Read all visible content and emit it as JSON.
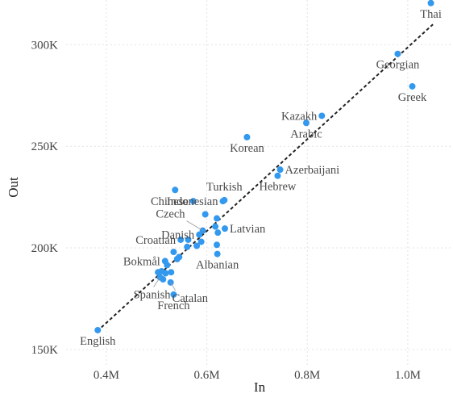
{
  "chart_data": {
    "type": "scatter",
    "title": "",
    "xlabel": "In",
    "ylabel": "Out",
    "xlim": [
      320000,
      1090000
    ],
    "ylim": [
      142000,
      322000
    ],
    "xticks": [
      {
        "value": 400000,
        "label": "0.4M"
      },
      {
        "value": 600000,
        "label": "0.6M"
      },
      {
        "value": 800000,
        "label": "0.8M"
      },
      {
        "value": 1000000,
        "label": "1.0M"
      }
    ],
    "yticks": [
      {
        "value": 150000,
        "label": "150K"
      },
      {
        "value": 200000,
        "label": "200K"
      },
      {
        "value": 250000,
        "label": "250K"
      },
      {
        "value": 300000,
        "label": "300K"
      }
    ],
    "grid": true,
    "point_color": "#3399ee",
    "trend_color": "#222222",
    "trendline": {
      "x": [
        382000,
        1050000
      ],
      "y": [
        159000,
        310000
      ]
    },
    "points": [
      {
        "x": 383000,
        "y": 159500,
        "label": "English",
        "label_pos": "below"
      },
      {
        "x": 1046000,
        "y": 320500,
        "label": "Thai",
        "label_pos": "below"
      },
      {
        "x": 980000,
        "y": 295500,
        "label": "Georgian",
        "label_pos": "below"
      },
      {
        "x": 1009000,
        "y": 279500,
        "label": "Greek",
        "label_pos": "below"
      },
      {
        "x": 829000,
        "y": 265000,
        "label": "Kazakh",
        "label_pos": "left"
      },
      {
        "x": 798000,
        "y": 261500,
        "label": "Arabic",
        "label_pos": "below"
      },
      {
        "x": 680000,
        "y": 254500,
        "label": "Korean",
        "label_pos": "below"
      },
      {
        "x": 746000,
        "y": 238500,
        "label": "Azerbaijani",
        "label_pos": "right"
      },
      {
        "x": 741000,
        "y": 235500,
        "label": "Hebrew",
        "label_pos": "below"
      },
      {
        "x": 635000,
        "y": 223500,
        "label": "Turkish",
        "label_pos": "above"
      },
      {
        "x": 573000,
        "y": 223000,
        "label": "Chinese",
        "label_pos": "left"
      },
      {
        "x": 632000,
        "y": 223000,
        "label": "Indonesian",
        "label_pos": "left"
      },
      {
        "x": 537000,
        "y": 228500,
        "label": "",
        "label_pos": "none"
      },
      {
        "x": 597000,
        "y": 216500,
        "label": "",
        "label_pos": "none"
      },
      {
        "x": 620000,
        "y": 214500,
        "label": "",
        "label_pos": "none"
      },
      {
        "x": 617000,
        "y": 210500,
        "label": "",
        "label_pos": "none"
      },
      {
        "x": 636000,
        "y": 209500,
        "label": "Latvian",
        "label_pos": "right"
      },
      {
        "x": 622000,
        "y": 207500,
        "label": "",
        "label_pos": "none"
      },
      {
        "x": 585000,
        "y": 206500,
        "label": "Danish",
        "label_pos": "left"
      },
      {
        "x": 592000,
        "y": 208500,
        "label": "Czech",
        "label_pos": "leader-left"
      },
      {
        "x": 563000,
        "y": 204000,
        "label": "",
        "label_pos": "none"
      },
      {
        "x": 548000,
        "y": 204000,
        "label": "Croatian",
        "label_pos": "left"
      },
      {
        "x": 589000,
        "y": 203000,
        "label": "",
        "label_pos": "none"
      },
      {
        "x": 620000,
        "y": 201500,
        "label": "",
        "label_pos": "none"
      },
      {
        "x": 580000,
        "y": 201000,
        "label": "",
        "label_pos": "none"
      },
      {
        "x": 561000,
        "y": 200500,
        "label": "",
        "label_pos": "none"
      },
      {
        "x": 621000,
        "y": 197000,
        "label": "Albanian",
        "label_pos": "below"
      },
      {
        "x": 534000,
        "y": 198000,
        "label": "",
        "label_pos": "none"
      },
      {
        "x": 545000,
        "y": 195500,
        "label": "",
        "label_pos": "none"
      },
      {
        "x": 541000,
        "y": 194500,
        "label": "",
        "label_pos": "none"
      },
      {
        "x": 517000,
        "y": 193500,
        "label": "Bokmål",
        "label_pos": "left"
      },
      {
        "x": 521000,
        "y": 191500,
        "label": "",
        "label_pos": "none"
      },
      {
        "x": 503000,
        "y": 188000,
        "label": "",
        "label_pos": "none"
      },
      {
        "x": 510000,
        "y": 188500,
        "label": "",
        "label_pos": "none"
      },
      {
        "x": 529000,
        "y": 188000,
        "label": "",
        "label_pos": "none"
      },
      {
        "x": 518000,
        "y": 187500,
        "label": "",
        "label_pos": "none"
      },
      {
        "x": 507000,
        "y": 185500,
        "label": "Spanish",
        "label_pos": "leader-below"
      },
      {
        "x": 513000,
        "y": 184500,
        "label": "",
        "label_pos": "none"
      },
      {
        "x": 528000,
        "y": 183000,
        "label": "Catalan",
        "label_pos": "leader-right"
      },
      {
        "x": 534000,
        "y": 177000,
        "label": "French",
        "label_pos": "below"
      }
    ]
  }
}
